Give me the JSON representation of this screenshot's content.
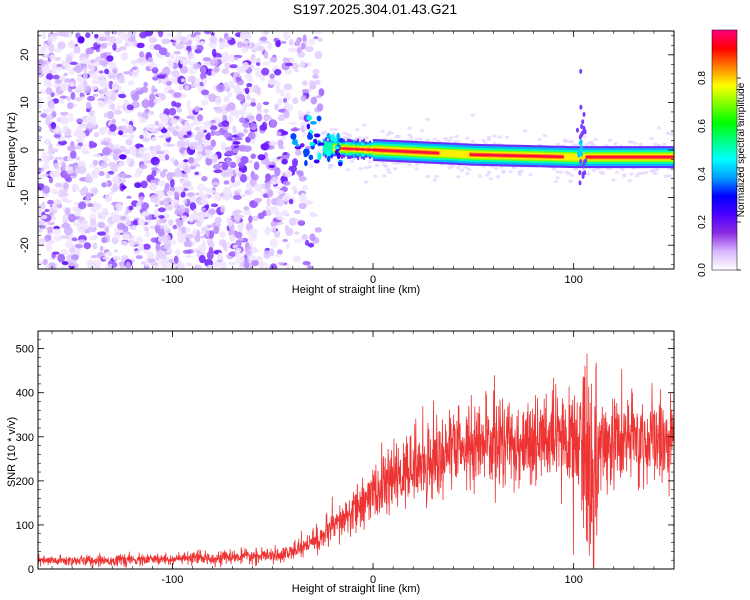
{
  "title": "S197.2025.304.01.43.G21",
  "chart_data": [
    {
      "type": "heatmap",
      "name": "spectrogram",
      "xlabel": "Height of straight line (km)",
      "ylabel": "Frequency (Hz)",
      "xlim": [
        -167,
        150
      ],
      "ylim": [
        -25,
        25
      ],
      "xticks": [
        -100,
        0,
        100
      ],
      "yticks": [
        -20,
        -10,
        0,
        10,
        20
      ],
      "colorbar": {
        "label": "Normalized spectral amplitude",
        "range": [
          0,
          1
        ],
        "ticks": [
          "0.0",
          "0.2",
          "0.4",
          "0.6",
          "0.8"
        ],
        "tick_values": [
          0,
          0.2,
          0.4,
          0.6,
          0.8
        ],
        "colors": [
          "#ffffff",
          "#d9b8ff",
          "#8a2be2",
          "#4b00ff",
          "#0000ff",
          "#00a0ff",
          "#00ffff",
          "#00ff80",
          "#00ff00",
          "#80ff00",
          "#ffff00",
          "#ff8000",
          "#ff0000",
          "#ff0080"
        ]
      },
      "ridge": {
        "start_km": -25,
        "end_km": 150,
        "frequency_hz": [
          [
            -25,
            0.5
          ],
          [
            0,
            0
          ],
          [
            50,
            -1
          ],
          [
            100,
            -1.5
          ],
          [
            150,
            -1.5
          ]
        ]
      },
      "noise_region_km": [
        -167,
        -25
      ]
    },
    {
      "type": "line",
      "name": "snr",
      "xlabel": "Height of straight line (km)",
      "ylabel": "SNR (10 * v/v)",
      "xlim": [
        -167,
        150
      ],
      "ylim": [
        0,
        540
      ],
      "xticks": [
        -100,
        0,
        100
      ],
      "yticks": [
        0,
        100,
        200,
        300,
        400,
        500
      ],
      "color": "#ee3333",
      "trend_km": [
        -167,
        -120,
        -80,
        -50,
        -40,
        -30,
        -20,
        -10,
        0,
        10,
        20,
        30,
        40,
        50,
        60,
        80,
        100,
        105,
        108,
        110,
        112,
        115,
        120,
        150
      ],
      "trend_snr": [
        18,
        20,
        25,
        30,
        40,
        60,
        90,
        130,
        170,
        200,
        230,
        255,
        270,
        280,
        285,
        290,
        290,
        300,
        250,
        200,
        250,
        280,
        290,
        292
      ]
    }
  ]
}
